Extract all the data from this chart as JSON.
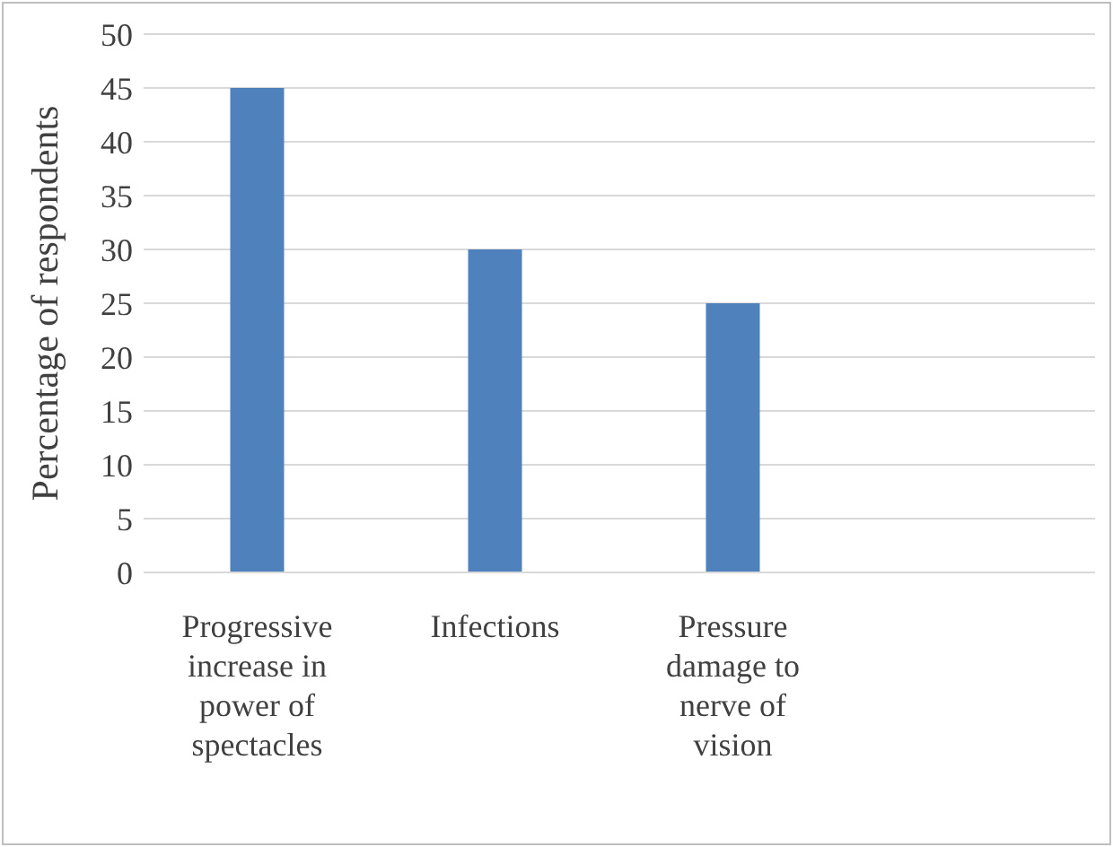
{
  "chart_data": {
    "type": "bar",
    "ylabel": "Percentage of respondents",
    "categories": [
      "Progressive increase in power of spectacles",
      "Infections",
      "Pressure damage to nerve of vision",
      null
    ],
    "values": [
      45,
      30,
      25,
      null
    ],
    "color": "#4f81bd",
    "ylim": [
      0,
      50
    ],
    "yticks": [
      0,
      5,
      10,
      15,
      20,
      25,
      30,
      35,
      40,
      45,
      50
    ],
    "grid": "y"
  }
}
